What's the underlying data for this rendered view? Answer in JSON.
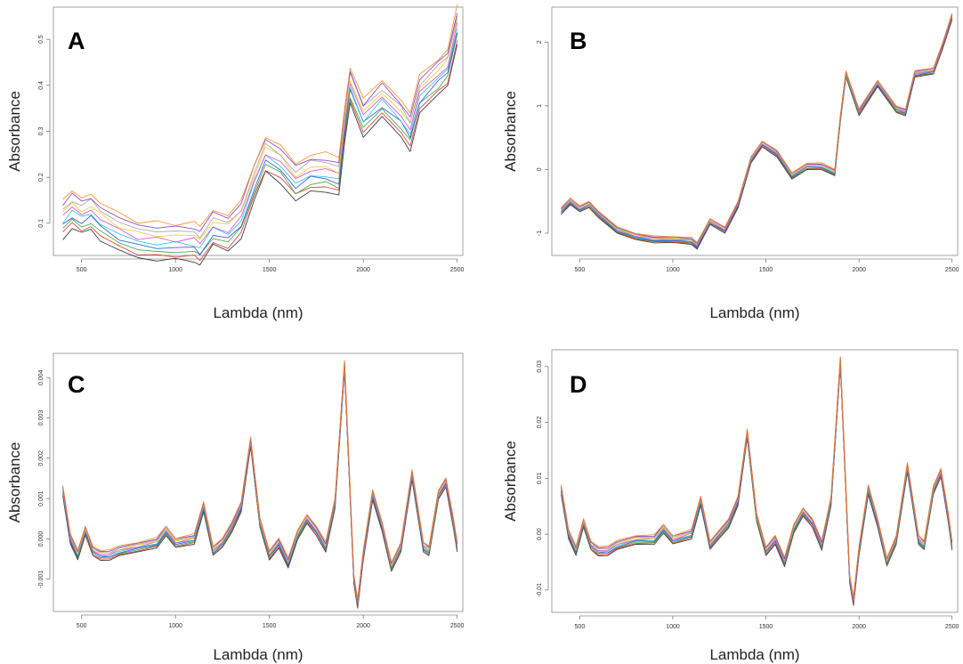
{
  "chart_data": [
    {
      "type": "line",
      "panel_label": "A",
      "xlabel": "Lambda (nm)",
      "ylabel": "Absorbance",
      "xlim": [
        350,
        2530
      ],
      "ylim": [
        0.03,
        0.57
      ],
      "xticks": [
        500,
        1000,
        1500,
        2000,
        2500
      ],
      "yticks": [
        0.1,
        0.2,
        0.3,
        0.4,
        0.5
      ],
      "ytick_labels": [
        "0.1",
        "0.2",
        "0.3",
        "0.4",
        "0.5"
      ],
      "grid": false,
      "legend": "none",
      "band_half_width": 0.04,
      "x": [
        400,
        450,
        500,
        550,
        600,
        700,
        800,
        900,
        1000,
        1100,
        1130,
        1200,
        1280,
        1350,
        1420,
        1480,
        1560,
        1640,
        1720,
        1800,
        1870,
        1900,
        1930,
        2000,
        2100,
        2200,
        2250,
        2300,
        2400,
        2450,
        2500
      ],
      "series_mean": [
        0.11,
        0.13,
        0.115,
        0.125,
        0.105,
        0.08,
        0.065,
        0.06,
        0.06,
        0.06,
        0.05,
        0.09,
        0.08,
        0.11,
        0.19,
        0.25,
        0.23,
        0.19,
        0.21,
        0.21,
        0.2,
        0.31,
        0.4,
        0.33,
        0.37,
        0.33,
        0.3,
        0.38,
        0.42,
        0.44,
        0.53
      ]
    },
    {
      "type": "line",
      "panel_label": "B",
      "xlabel": "Lambda (nm)",
      "ylabel": "Absorbance",
      "xlim": [
        350,
        2530
      ],
      "ylim": [
        -1.35,
        2.55
      ],
      "xticks": [
        500,
        1000,
        1500,
        2000,
        2500
      ],
      "yticks": [
        -1,
        0,
        1,
        2
      ],
      "ytick_labels": [
        "-1",
        "0",
        "1",
        "2"
      ],
      "grid": false,
      "legend": "none",
      "band_half_width": 0.05,
      "x": [
        400,
        450,
        500,
        550,
        600,
        700,
        800,
        900,
        1000,
        1100,
        1130,
        1200,
        1280,
        1350,
        1420,
        1480,
        1560,
        1640,
        1720,
        1800,
        1870,
        1900,
        1930,
        2000,
        2100,
        2200,
        2250,
        2300,
        2400,
        2450,
        2500
      ],
      "series_mean": [
        -0.65,
        -0.5,
        -0.62,
        -0.55,
        -0.7,
        -0.95,
        -1.05,
        -1.1,
        -1.1,
        -1.12,
        -1.2,
        -0.82,
        -0.95,
        -0.55,
        0.15,
        0.4,
        0.25,
        -0.1,
        0.05,
        0.05,
        -0.05,
        0.8,
        1.5,
        0.9,
        1.35,
        0.95,
        0.9,
        1.5,
        1.55,
        1.95,
        2.4
      ]
    },
    {
      "type": "line",
      "panel_label": "C",
      "xlabel": "Lambda (nm)",
      "ylabel": "Absorbance",
      "xlim": [
        350,
        2530
      ],
      "ylim": [
        -0.0018,
        0.0046
      ],
      "xticks": [
        500,
        1000,
        1500,
        2000,
        2500
      ],
      "yticks": [
        -0.001,
        0.0,
        0.001,
        0.002,
        0.003,
        0.004
      ],
      "ytick_labels": [
        "-0.001",
        "0.000",
        "0.001",
        "0.002",
        "0.003",
        "0.004"
      ],
      "grid": false,
      "legend": "none",
      "band_half_width": 0.00012,
      "x": [
        400,
        440,
        480,
        520,
        560,
        600,
        650,
        700,
        800,
        900,
        950,
        1000,
        1100,
        1150,
        1200,
        1250,
        1300,
        1350,
        1400,
        1450,
        1500,
        1550,
        1600,
        1650,
        1700,
        1750,
        1800,
        1850,
        1900,
        1950,
        1970,
        2000,
        2050,
        2100,
        2150,
        2200,
        2260,
        2320,
        2350,
        2400,
        2440,
        2480,
        2500
      ],
      "series_mean": [
        0.0012,
        0.0,
        -0.0004,
        0.0002,
        -0.0003,
        -0.0004,
        -0.0004,
        -0.0003,
        -0.0002,
        -0.0001,
        0.0002,
        -0.0001,
        0.0,
        0.0008,
        -0.0003,
        -0.0001,
        0.0003,
        0.0008,
        0.0024,
        0.0004,
        -0.0004,
        -0.0001,
        -0.0006,
        0.0001,
        0.0005,
        0.0002,
        -0.0002,
        0.0009,
        0.0043,
        -0.001,
        -0.0016,
        -0.0004,
        0.0011,
        0.0003,
        -0.0007,
        -0.0002,
        0.0016,
        -0.0002,
        -0.0003,
        0.0011,
        0.0014,
        0.0004,
        -0.0002
      ]
    },
    {
      "type": "line",
      "panel_label": "D",
      "xlabel": "Lambda (nm)",
      "ylabel": "Absorbance",
      "xlim": [
        350,
        2530
      ],
      "ylim": [
        -0.014,
        0.033
      ],
      "xticks": [
        500,
        1000,
        1500,
        2000,
        2500
      ],
      "yticks": [
        -0.01,
        0.0,
        0.01,
        0.02,
        0.03
      ],
      "ytick_labels": [
        "-0.01",
        "0.00",
        "0.01",
        "0.02",
        "0.03"
      ],
      "grid": false,
      "legend": "none",
      "band_half_width": 0.0008,
      "x": [
        400,
        440,
        480,
        520,
        560,
        600,
        650,
        700,
        800,
        900,
        950,
        1000,
        1100,
        1150,
        1200,
        1250,
        1300,
        1350,
        1400,
        1450,
        1500,
        1550,
        1600,
        1650,
        1700,
        1750,
        1800,
        1850,
        1900,
        1950,
        1970,
        2000,
        2050,
        2100,
        2150,
        2200,
        2260,
        2320,
        2350,
        2400,
        2440,
        2480,
        2500
      ],
      "series_mean": [
        0.008,
        0.0,
        -0.003,
        0.002,
        -0.002,
        -0.003,
        -0.003,
        -0.002,
        -0.001,
        -0.001,
        0.001,
        -0.001,
        0.0,
        0.006,
        -0.002,
        0.0,
        0.002,
        0.006,
        0.018,
        0.003,
        -0.003,
        -0.001,
        -0.005,
        0.001,
        0.004,
        0.002,
        -0.002,
        0.006,
        0.031,
        -0.008,
        -0.012,
        -0.003,
        0.008,
        0.002,
        -0.005,
        -0.001,
        0.012,
        -0.001,
        -0.002,
        0.008,
        0.011,
        0.003,
        -0.002
      ]
    }
  ],
  "line_colors": [
    "#1a1a1a",
    "#d62728",
    "#2ca02c",
    "#1f3fd6",
    "#17becf",
    "#d63cc9",
    "#f0c419",
    "#9e9e9e",
    "#7b2fbe",
    "#ff7f0e"
  ]
}
